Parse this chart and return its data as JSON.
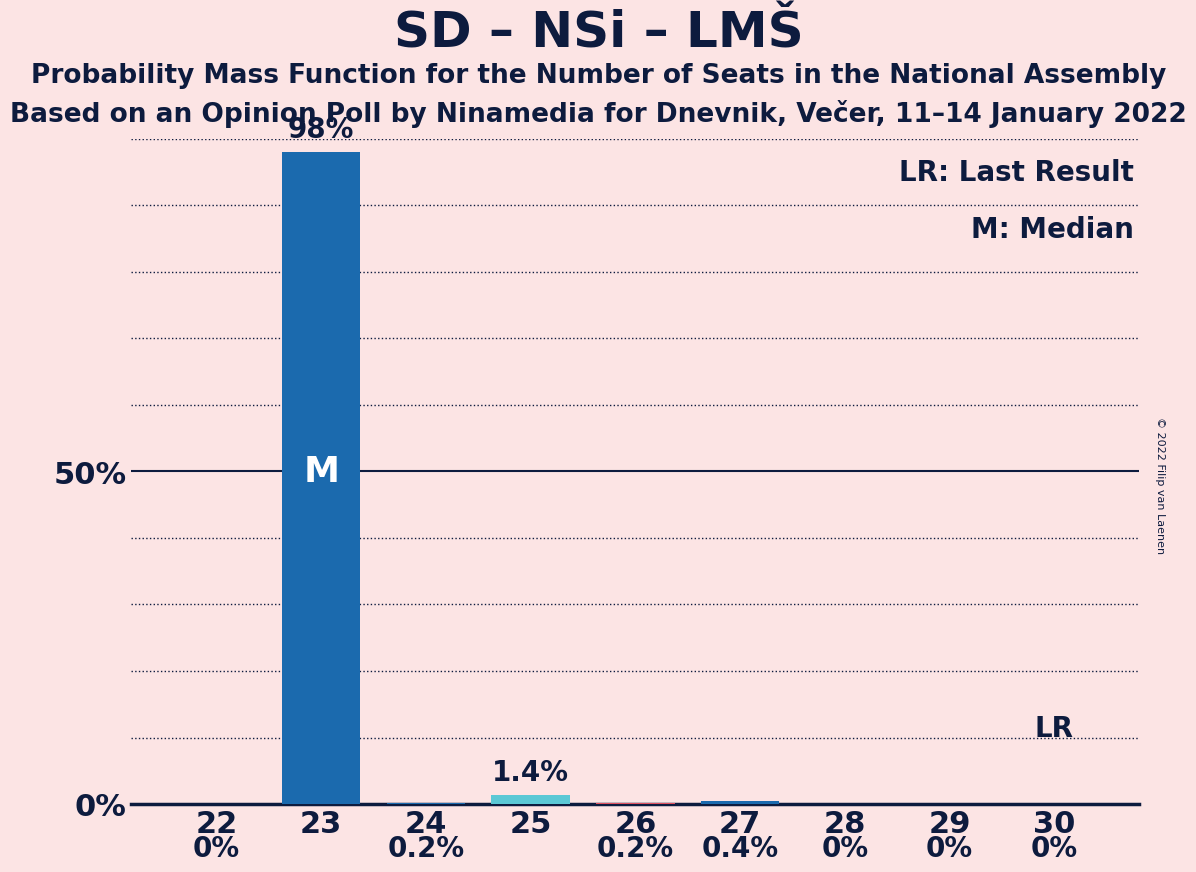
{
  "title": "SD – NSi – LMŠ",
  "subtitle1": "Probability Mass Function for the Number of Seats in the National Assembly",
  "subtitle2": "Based on an Opinion Poll by Ninamedia for Dnevnik, Večer, 11–14 January 2022",
  "copyright": "© 2022 Filip van Laenen",
  "categories": [
    22,
    23,
    24,
    25,
    26,
    27,
    28,
    29,
    30
  ],
  "values": [
    0.0,
    0.98,
    0.002,
    0.014,
    0.002,
    0.004,
    0.0,
    0.0,
    0.0
  ],
  "bar_labels": [
    "0%",
    "98%",
    "0.2%",
    "1.4%",
    "0.2%",
    "0.4%",
    "0%",
    "0%",
    "0%"
  ],
  "bar_colors": [
    "#1b6aae",
    "#1b6aae",
    "#1b6aae",
    "#5bc8d5",
    "#1b6aae",
    "#1b6aae",
    "#1b6aae",
    "#1b6aae",
    "#1b6aae"
  ],
  "lr_bar_index": 4,
  "lr_bar_color": "#e05060",
  "median_bar_index": 1,
  "background_color": "#fce4e4",
  "bar_main_color": "#1b6aae",
  "text_color": "#0d1b3e",
  "ylim": [
    0,
    1.0
  ],
  "fifty_pct_line": 0.5,
  "title_fontsize": 36,
  "subtitle_fontsize": 19,
  "axis_tick_fontsize": 22,
  "bar_label_fontsize": 20,
  "legend_fontsize": 20,
  "M_label_fontsize": 22
}
